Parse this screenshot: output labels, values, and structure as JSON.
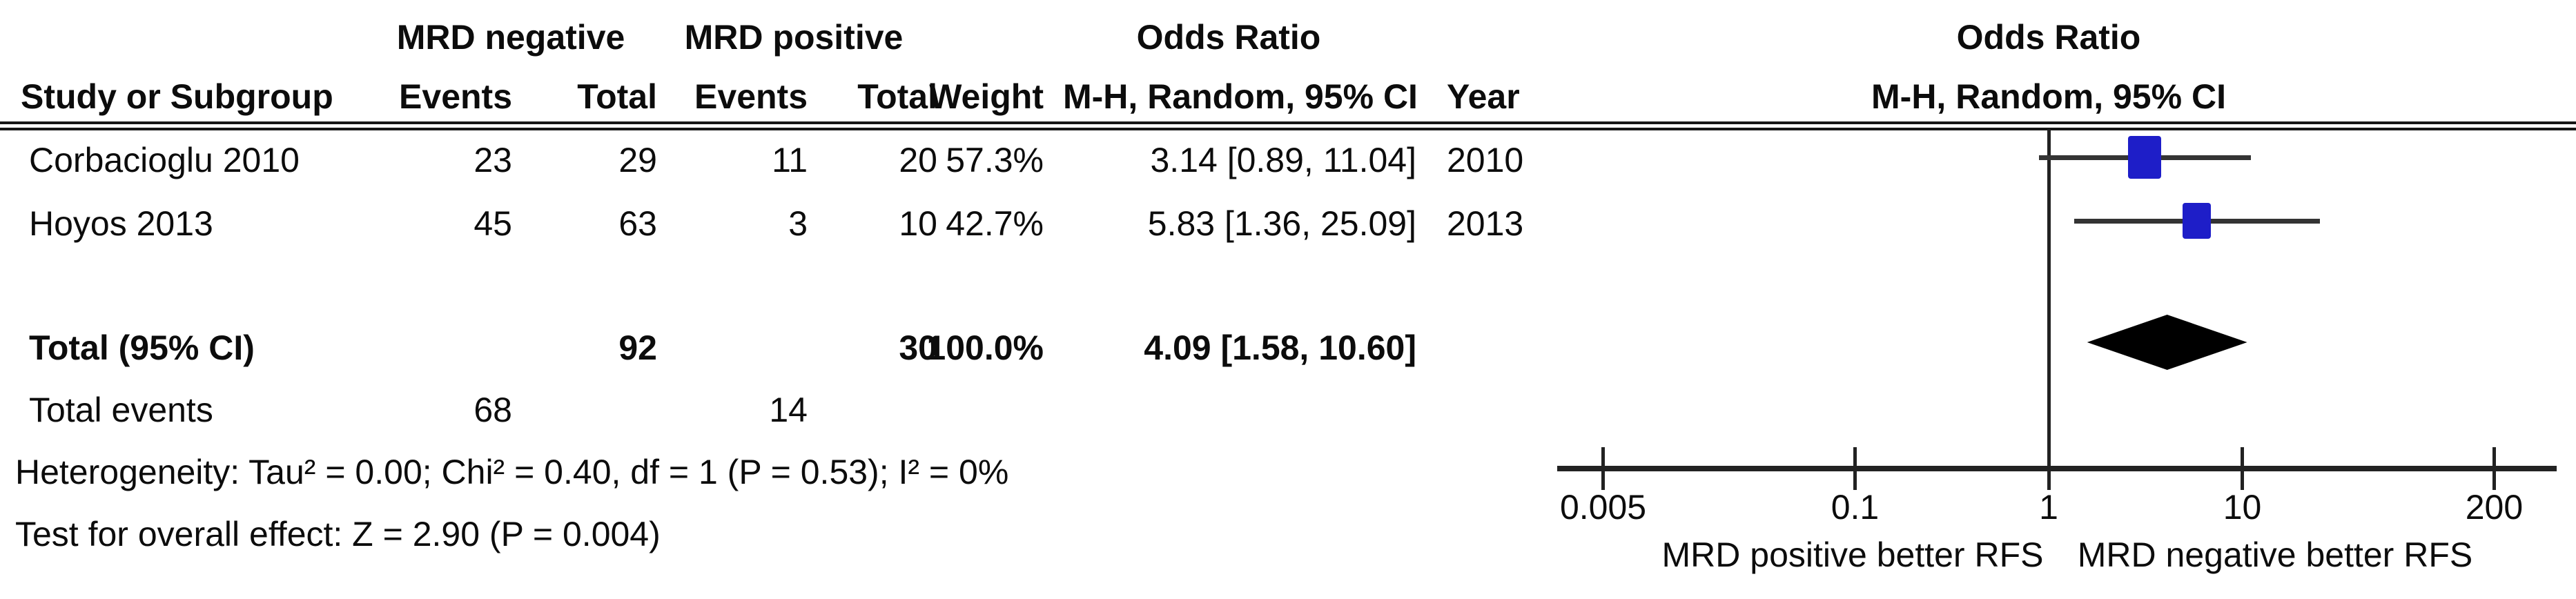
{
  "table": {
    "header": {
      "group1": "MRD negative",
      "group2": "MRD positive",
      "or_col": "Odds Ratio",
      "study": "Study or Subgroup",
      "events": "Events",
      "total": "Total",
      "weight": "Weight",
      "mh": "M-H, Random, 95% CI",
      "year": "Year"
    },
    "rows": [
      {
        "study": "Corbacioglu 2010",
        "e1": "23",
        "t1": "29",
        "e2": "11",
        "t2": "20",
        "weight": "57.3%",
        "or": "3.14 [0.89, 11.04]",
        "year": "2010"
      },
      {
        "study": "Hoyos 2013",
        "e1": "45",
        "t1": "63",
        "e2": "3",
        "t2": "10",
        "weight": "42.7%",
        "or": "5.83 [1.36, 25.09]",
        "year": "2013"
      }
    ],
    "total_row": {
      "label": "Total (95% CI)",
      "t1": "92",
      "t2": "30",
      "weight": "100.0%",
      "or": "4.09 [1.58, 10.60]"
    },
    "total_events": {
      "label": "Total events",
      "e1": "68",
      "e2": "14"
    },
    "heterogeneity": "Heterogeneity: Tau² = 0.00; Chi² = 0.40, df = 1 (P = 0.53); I² = 0%",
    "overall_effect": "Test for overall effect: Z = 2.90 (P = 0.004)"
  },
  "plot": {
    "header_line1": "Odds Ratio",
    "header_line2": "M-H, Random, 95% CI",
    "marker_color": "#1e1ec8",
    "line_color": "#343434",
    "diamond_color": "#000000"
  },
  "chart_data": {
    "type": "forest",
    "effect_measure": "Odds Ratio",
    "method": "M-H, Random, 95% CI",
    "x_scale": "log",
    "x_ticks": [
      0.005,
      0.1,
      1,
      10,
      200
    ],
    "x_tick_labels": [
      "0.005",
      "0.1",
      "1",
      "10",
      "200"
    ],
    "null_line": 1,
    "studies": [
      {
        "name": "Corbacioglu 2010",
        "events_neg": 23,
        "total_neg": 29,
        "events_pos": 11,
        "total_pos": 20,
        "or": 3.14,
        "ci_low": 0.89,
        "ci_high": 11.04,
        "weight": 57.3,
        "year": 2010
      },
      {
        "name": "Hoyos 2013",
        "events_neg": 45,
        "total_neg": 63,
        "events_pos": 3,
        "total_pos": 10,
        "or": 5.83,
        "ci_low": 1.36,
        "ci_high": 25.09,
        "weight": 42.7,
        "year": 2013
      }
    ],
    "total": {
      "or": 4.09,
      "ci_low": 1.58,
      "ci_high": 10.6,
      "total_neg": 92,
      "total_pos": 30,
      "weight": 100.0,
      "events_neg": 68,
      "events_pos": 14
    },
    "heterogeneity": {
      "tau2": 0.0,
      "chi2": 0.4,
      "df": 1,
      "p": 0.53,
      "i2_pct": 0
    },
    "overall_effect": {
      "z": 2.9,
      "p": 0.004
    },
    "axis_left_label": "MRD positive better RFS",
    "axis_right_label": "MRD negative better RFS"
  }
}
